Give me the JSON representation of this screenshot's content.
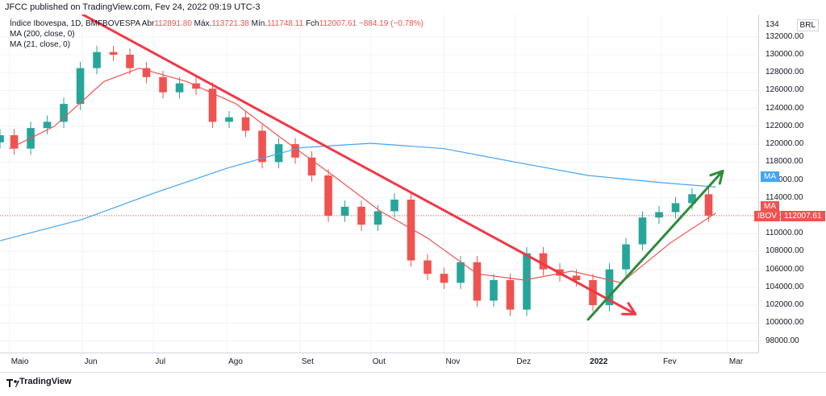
{
  "header": {
    "published": "JFCC published on TradingView.com, Fev 24, 2022 09:19 UTC-3"
  },
  "legend": {
    "symbol": "Índice Ibovespa, 1D, BMFBOVESPA",
    "open_label": "Abr",
    "open": "112891.80",
    "high_label": "Máx.",
    "high": "113721.38",
    "low_label": "Mín.",
    "low": "111748.11",
    "close_label": "Fch",
    "close": "112007.61",
    "change": "−884.19 (−0.78%)",
    "ma200": "MA (200, close, 0)",
    "ma21": "MA (21, close, 0)"
  },
  "price_axis": {
    "currency": "BRL",
    "ticks": [
      "132000.00",
      "130000.00",
      "128000.00",
      "126000.00",
      "124000.00",
      "122000.00",
      "120000.00",
      "118000.00",
      "116000.00",
      "114000.00",
      "112000.00",
      "110000.00",
      "108000.00",
      "106000.00",
      "104000.00",
      "102000.00",
      "100000.00",
      "98000.00"
    ],
    "top_partial": "134",
    "ma_tag": "MA",
    "ma21_tag": "MA",
    "ibov_tag": "IBOV",
    "last_price": "112007.61"
  },
  "time_axis": {
    "labels": [
      "Maio",
      "Jun",
      "Jul",
      "Ago",
      "Set",
      "Out",
      "Nov",
      "Dez",
      "2022",
      "Fev",
      "Mar"
    ]
  },
  "footer": {
    "brand": "TradingView"
  },
  "colors": {
    "up": "#26a69a",
    "down": "#ef5350",
    "ma200": "#42a5f5",
    "ma21": "#ef5350",
    "trend_down": "#f23645",
    "trend_up": "#2e8b3a"
  },
  "chart_data": {
    "type": "candlestick",
    "title": "Índice Ibovespa, 1D, BMFBOVESPA",
    "xlabel": "",
    "ylabel": "",
    "ylim": [
      96700,
      134500
    ],
    "x_range": [
      "2021-04-27",
      "2022-03-14"
    ],
    "close_series": [
      [
        "2021-04-27",
        121000
      ],
      [
        "2021-05-03",
        119500
      ],
      [
        "2021-05-10",
        121800
      ],
      [
        "2021-05-17",
        122500
      ],
      [
        "2021-05-24",
        124500
      ],
      [
        "2021-05-31",
        128500
      ],
      [
        "2021-06-07",
        130300
      ],
      [
        "2021-06-14",
        130000
      ],
      [
        "2021-06-21",
        128500
      ],
      [
        "2021-06-28",
        127500
      ],
      [
        "2021-07-05",
        125800
      ],
      [
        "2021-07-12",
        126800
      ],
      [
        "2021-07-19",
        126200
      ],
      [
        "2021-07-26",
        122500
      ],
      [
        "2021-08-02",
        123000
      ],
      [
        "2021-08-09",
        121500
      ],
      [
        "2021-08-16",
        118000
      ],
      [
        "2021-08-23",
        120000
      ],
      [
        "2021-08-30",
        118500
      ],
      [
        "2021-09-06",
        116500
      ],
      [
        "2021-09-13",
        112000
      ],
      [
        "2021-09-20",
        113000
      ],
      [
        "2021-09-27",
        111000
      ],
      [
        "2021-10-04",
        112500
      ],
      [
        "2021-10-11",
        113800
      ],
      [
        "2021-10-18",
        107000
      ],
      [
        "2021-10-25",
        105500
      ],
      [
        "2021-11-01",
        104500
      ],
      [
        "2021-11-08",
        106800
      ],
      [
        "2021-11-15",
        102500
      ],
      [
        "2021-11-22",
        104800
      ],
      [
        "2021-11-29",
        101500
      ],
      [
        "2021-12-06",
        107800
      ],
      [
        "2021-12-13",
        106000
      ],
      [
        "2021-12-20",
        105300
      ],
      [
        "2021-12-27",
        104800
      ],
      [
        "2022-01-03",
        102000
      ],
      [
        "2022-01-10",
        106000
      ],
      [
        "2022-01-17",
        108800
      ],
      [
        "2022-01-24",
        111800
      ],
      [
        "2022-01-31",
        112400
      ],
      [
        "2022-02-07",
        113400
      ],
      [
        "2022-02-14",
        114400
      ],
      [
        "2022-02-21",
        112007.61
      ]
    ],
    "ma200_series": [
      [
        "2021-04-27",
        109200
      ],
      [
        "2021-06-01",
        111600
      ],
      [
        "2021-07-01",
        114500
      ],
      [
        "2021-08-01",
        117300
      ],
      [
        "2021-09-01",
        119600
      ],
      [
        "2021-10-01",
        120100
      ],
      [
        "2021-11-01",
        119500
      ],
      [
        "2021-12-01",
        118000
      ],
      [
        "2022-01-01",
        116500
      ],
      [
        "2022-02-01",
        115700
      ],
      [
        "2022-02-24",
        115200
      ]
    ],
    "ma21_series": [
      [
        "2021-05-01",
        119500
      ],
      [
        "2021-05-20",
        122000
      ],
      [
        "2021-06-10",
        127000
      ],
      [
        "2021-06-25",
        128500
      ],
      [
        "2021-07-15",
        127000
      ],
      [
        "2021-08-05",
        124500
      ],
      [
        "2021-08-25",
        120500
      ],
      [
        "2021-09-15",
        116500
      ],
      [
        "2021-10-05",
        112500
      ],
      [
        "2021-10-25",
        109500
      ],
      [
        "2021-11-15",
        105500
      ],
      [
        "2021-12-05",
        104800
      ],
      [
        "2021-12-25",
        105800
      ],
      [
        "2022-01-15",
        104500
      ],
      [
        "2022-02-05",
        109000
      ],
      [
        "2022-02-24",
        112300
      ]
    ],
    "drawings": [
      {
        "type": "trendline",
        "color": "red",
        "from": [
          "2021-06-01",
          134500
        ],
        "to": [
          "2022-01-21",
          101000
        ]
      },
      {
        "type": "trendline",
        "color": "green",
        "from": [
          "2022-01-01",
          100400
        ],
        "to": [
          "2022-02-27",
          117000
        ]
      }
    ]
  }
}
